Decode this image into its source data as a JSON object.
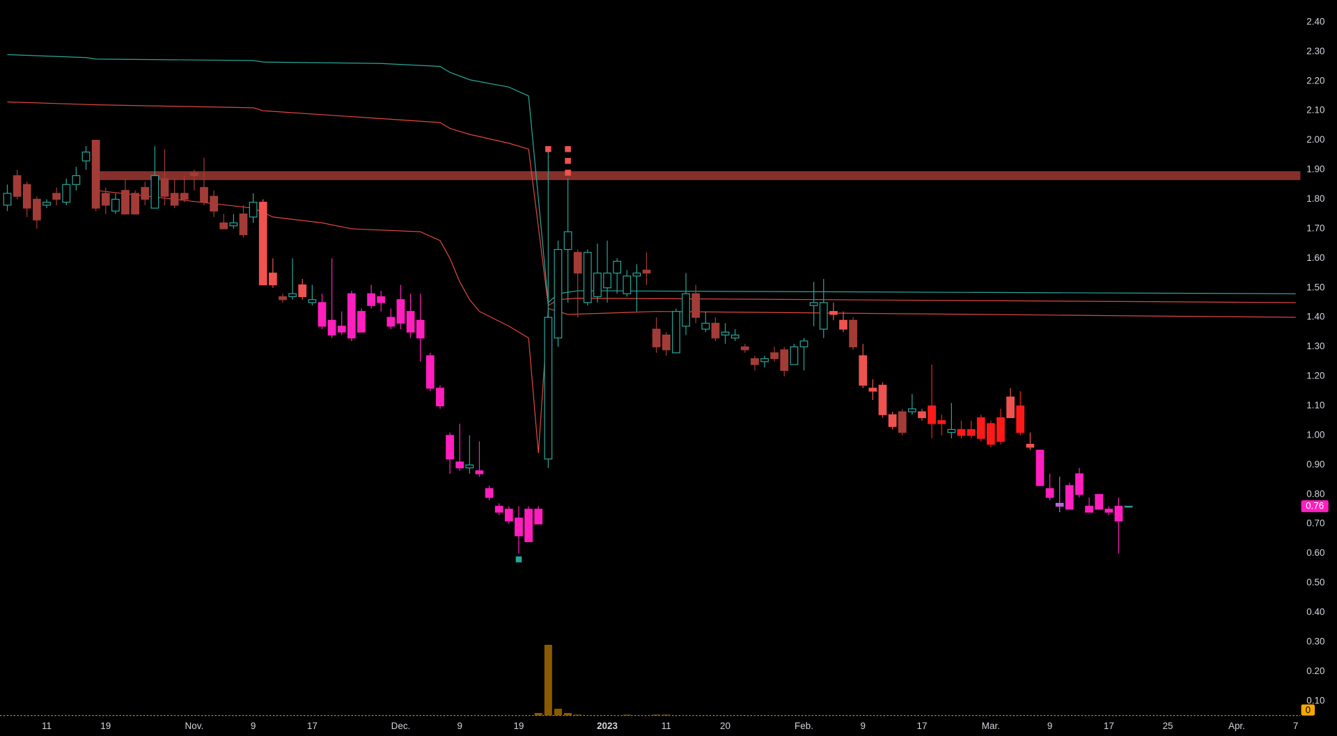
{
  "chart_data": {
    "type": "candlestick",
    "categories": [
      null,
      null,
      null,
      null,
      "11",
      null,
      null,
      null,
      null,
      null,
      "19",
      null,
      null,
      null,
      null,
      null,
      null,
      null,
      null,
      "Nov.",
      null,
      null,
      null,
      null,
      null,
      "9",
      null,
      null,
      null,
      null,
      null,
      "17",
      null,
      null,
      null,
      null,
      null,
      null,
      null,
      null,
      "Dec.",
      null,
      null,
      null,
      null,
      null,
      "9",
      null,
      null,
      null,
      null,
      null,
      "19",
      null,
      null,
      null,
      null,
      null,
      null,
      null,
      null,
      "2023",
      null,
      null,
      null,
      null,
      null,
      "11",
      null,
      null,
      null,
      null,
      null,
      "20",
      null,
      null,
      null,
      null,
      null,
      null,
      null,
      "Feb.",
      null,
      null,
      null,
      null,
      null,
      "9",
      null,
      null,
      null,
      null,
      null,
      "17",
      null,
      null,
      null,
      null,
      null,
      null,
      "Mar.",
      null,
      null,
      null,
      null,
      null,
      "9",
      null,
      null,
      null,
      null,
      null,
      "17",
      null,
      null,
      null,
      null,
      null,
      "25",
      null,
      null,
      null,
      null,
      null,
      null,
      "Apr.",
      null,
      null,
      null,
      null,
      null,
      "7"
    ],
    "open": [
      1.78,
      1.88,
      1.85,
      1.8,
      1.78,
      1.82,
      1.79,
      1.85,
      1.93,
      2.0,
      1.82,
      1.76,
      1.83,
      1.82,
      1.84,
      1.77,
      1.87,
      1.82,
      1.82,
      1.89,
      1.84,
      1.81,
      1.72,
      1.71,
      1.75,
      1.74,
      1.79,
      1.55,
      1.47,
      1.47,
      1.51,
      1.45,
      1.45,
      1.39,
      1.37,
      1.48,
      1.42,
      1.48,
      1.47,
      1.4,
      1.46,
      1.42,
      1.39,
      1.27,
      1.16,
      1.0,
      0.91,
      0.89,
      0.88,
      0.82,
      0.76,
      0.75,
      0.72,
      0.75,
      0.75,
      0.92,
      1.33,
      1.63,
      1.62,
      1.45,
      1.47,
      1.5,
      1.55,
      1.48,
      1.54,
      1.56,
      1.36,
      1.34,
      1.28,
      1.37,
      1.48,
      1.36,
      1.38,
      1.34,
      1.33,
      1.3,
      1.26,
      1.25,
      1.28,
      1.29,
      1.24,
      1.3,
      1.44,
      1.36,
      1.42,
      1.39,
      1.39,
      1.27,
      1.16,
      1.17,
      1.07,
      1.08,
      1.08,
      1.08,
      1.1,
      1.05,
      1.01,
      1.02,
      1.02,
      1.06,
      1.04,
      1.06,
      1.13,
      1.1,
      0.97,
      0.95,
      0.82,
      0.77,
      0.83,
      0.87,
      0.76,
      0.8,
      0.75,
      0.76,
      0.76,
      null,
      null,
      null,
      null,
      null,
      null,
      null,
      null,
      null,
      null,
      null,
      null,
      null,
      null,
      null,
      null,
      null
    ],
    "high": [
      1.85,
      1.9,
      1.86,
      1.81,
      1.8,
      1.84,
      1.87,
      1.91,
      1.98,
      2.0,
      1.84,
      1.82,
      1.87,
      1.83,
      1.86,
      1.98,
      1.97,
      1.87,
      1.88,
      1.9,
      1.94,
      1.83,
      1.75,
      1.75,
      1.78,
      1.82,
      1.8,
      1.6,
      1.48,
      1.6,
      1.53,
      1.51,
      1.48,
      1.6,
      1.42,
      1.49,
      1.43,
      1.51,
      1.49,
      1.43,
      1.51,
      1.48,
      1.48,
      1.28,
      1.17,
      1.01,
      1.04,
      1.0,
      0.98,
      0.83,
      0.77,
      0.76,
      0.76,
      0.76,
      0.76,
      1.96,
      1.66,
      1.87,
      1.63,
      1.63,
      1.65,
      1.66,
      1.6,
      1.56,
      1.58,
      1.62,
      1.4,
      1.35,
      1.43,
      1.55,
      1.51,
      1.42,
      1.4,
      1.38,
      1.36,
      1.31,
      1.27,
      1.27,
      1.3,
      1.3,
      1.31,
      1.33,
      1.52,
      1.53,
      1.45,
      1.42,
      1.4,
      1.31,
      1.19,
      1.18,
      1.08,
      1.09,
      1.14,
      1.09,
      1.24,
      1.07,
      1.11,
      1.05,
      1.05,
      1.07,
      1.05,
      1.09,
      1.16,
      1.15,
      1.01,
      0.95,
      0.87,
      0.86,
      0.84,
      0.89,
      0.79,
      0.8,
      0.76,
      0.79,
      0.76,
      null,
      null,
      null,
      null,
      null,
      null,
      null,
      null,
      null,
      null,
      null,
      null,
      null,
      null,
      null,
      null,
      null
    ],
    "low": [
      1.76,
      1.8,
      1.74,
      1.7,
      1.77,
      1.78,
      1.78,
      1.83,
      1.9,
      1.76,
      1.75,
      1.75,
      1.75,
      1.75,
      1.78,
      1.77,
      1.78,
      1.77,
      1.79,
      1.83,
      1.78,
      1.74,
      1.7,
      1.7,
      1.67,
      1.72,
      1.51,
      1.5,
      1.45,
      1.46,
      1.46,
      1.44,
      1.36,
      1.33,
      1.34,
      1.32,
      1.35,
      1.43,
      1.42,
      1.36,
      1.36,
      1.33,
      1.25,
      1.15,
      1.09,
      0.87,
      0.88,
      0.87,
      0.86,
      0.78,
      0.73,
      0.7,
      0.6,
      0.64,
      0.7,
      0.89,
      1.3,
      1.45,
      1.4,
      1.44,
      1.45,
      1.45,
      1.48,
      1.47,
      1.42,
      1.51,
      1.28,
      1.27,
      1.28,
      1.34,
      1.38,
      1.35,
      1.32,
      1.31,
      1.32,
      1.28,
      1.22,
      1.23,
      1.25,
      1.2,
      1.24,
      1.22,
      1.37,
      1.33,
      1.39,
      1.35,
      1.29,
      1.16,
      1.12,
      1.06,
      1.02,
      1.0,
      1.07,
      1.05,
      0.99,
      1.0,
      0.99,
      0.99,
      0.99,
      0.98,
      0.96,
      0.97,
      1.06,
      1.0,
      0.95,
      0.83,
      0.78,
      0.74,
      0.75,
      0.79,
      0.74,
      0.75,
      0.73,
      0.6,
      0.76,
      null,
      null,
      null,
      null,
      null,
      null,
      null,
      null,
      null,
      null,
      null,
      null,
      null,
      null,
      null,
      null,
      null
    ],
    "close": [
      1.82,
      1.81,
      1.77,
      1.73,
      1.79,
      1.8,
      1.85,
      1.88,
      1.96,
      1.77,
      1.78,
      1.8,
      1.75,
      1.75,
      1.8,
      1.88,
      1.81,
      1.78,
      1.8,
      1.88,
      1.79,
      1.76,
      1.7,
      1.72,
      1.68,
      1.79,
      1.51,
      1.51,
      1.46,
      1.48,
      1.47,
      1.46,
      1.37,
      1.34,
      1.35,
      1.33,
      1.35,
      1.44,
      1.45,
      1.37,
      1.38,
      1.35,
      1.33,
      1.16,
      1.1,
      0.92,
      0.89,
      0.9,
      0.87,
      0.79,
      0.74,
      0.71,
      0.66,
      0.64,
      0.7,
      1.4,
      1.63,
      1.69,
      1.55,
      1.62,
      1.55,
      1.55,
      1.59,
      1.54,
      1.55,
      1.55,
      1.3,
      1.29,
      1.42,
      1.48,
      1.4,
      1.38,
      1.33,
      1.35,
      1.34,
      1.29,
      1.24,
      1.26,
      1.26,
      1.22,
      1.3,
      1.32,
      1.45,
      1.45,
      1.41,
      1.36,
      1.3,
      1.17,
      1.15,
      1.07,
      1.03,
      1.01,
      1.09,
      1.06,
      1.04,
      1.04,
      1.02,
      1.0,
      1.0,
      0.99,
      0.97,
      0.98,
      1.06,
      1.01,
      0.96,
      0.83,
      0.79,
      0.76,
      0.75,
      0.8,
      0.74,
      0.75,
      0.74,
      0.71,
      0.76,
      null,
      null,
      null,
      null,
      null,
      null,
      null,
      null,
      null,
      null,
      null,
      null,
      null,
      null,
      null,
      null,
      null
    ],
    "colors": [
      "#26a69a",
      "#a33c37",
      "#a33c37",
      "#a33c37",
      "#26a69a",
      "#a33c37",
      "#26a69a",
      "#26a69a",
      "#26a69a",
      "#a33c37",
      "#a33c37",
      "#26a69a",
      "#a33c37",
      "#a33c37",
      "#a33c37",
      "#26a69a",
      "#a33c37",
      "#a33c37",
      "#a33c37",
      "#a33c37",
      "#a33c37",
      "#a33c37",
      "#a33c37",
      "#26a69a",
      "#a33c37",
      "#26a69a",
      "#ef5350",
      "#ef5350",
      "#a33c37",
      "#26a69a",
      "#ef5350",
      "#26a69a",
      "#ff1fbf",
      "#ff1fbf",
      "#ff1fbf",
      "#ff1fbf",
      "#ff1fbf",
      "#ff1fbf",
      "#ff1fbf",
      "#ff1fbf",
      "#ff1fbf",
      "#ff1fbf",
      "#ff1fbf",
      "#ff1fbf",
      "#ff1fbf",
      "#ff1fbf",
      "#ff1fbf",
      "#26a69a",
      "#ff1fbf",
      "#ff1fbf",
      "#ff1fbf",
      "#ff1fbf",
      "#ff1fbf",
      "#ff1fbf",
      "#ff1fbf",
      "#26a69a",
      "#26a69a",
      "#26a69a",
      "#a33c37",
      "#26a69a",
      "#26a69a",
      "#26a69a",
      "#26a69a",
      "#26a69a",
      "#26a69a",
      "#a33c37",
      "#a33c37",
      "#a33c37",
      "#26a69a",
      "#26a69a",
      "#a33c37",
      "#26a69a",
      "#a33c37",
      "#26a69a",
      "#26a69a",
      "#a33c37",
      "#a33c37",
      "#26a69a",
      "#a33c37",
      "#a33c37",
      "#26a69a",
      "#26a69a",
      "#26a69a",
      "#26a69a",
      "#ef5350",
      "#ef5350",
      "#a33c37",
      "#ef5350",
      "#ef5350",
      "#ef5350",
      "#ef5350",
      "#a33c37",
      "#26a69a",
      "#ef5350",
      "#ff1a1a",
      "#ff1a1a",
      "#26a69a",
      "#ff1a1a",
      "#ff1a1a",
      "#ff1a1a",
      "#ff1a1a",
      "#ff1a1a",
      "#ef5350",
      "#ff1a1a",
      "#ef5350",
      "#ff1fbf",
      "#ff1fbf",
      "#c060e0",
      "#ff1fbf",
      "#ff1fbf",
      "#ff1fbf",
      "#ff1fbf",
      "#ff1fbf",
      "#ff1fbf",
      "#26a69a",
      null,
      null,
      null,
      null,
      null,
      null,
      null,
      null,
      null,
      null,
      null,
      null,
      null,
      null,
      null,
      null,
      null
    ],
    "hollow_up": true,
    "volume": [
      0,
      0,
      0,
      0,
      0,
      0,
      0,
      0,
      0,
      0,
      0,
      0,
      0,
      0,
      0,
      0,
      0,
      0,
      0,
      0,
      0,
      0,
      0,
      0,
      0,
      0,
      0,
      0,
      0,
      0,
      0,
      0,
      0,
      0,
      0,
      0,
      0,
      0,
      0,
      0,
      0,
      0,
      0,
      0,
      0,
      0,
      0,
      0,
      0,
      0,
      0,
      0,
      0,
      0,
      3,
      83,
      8,
      3,
      1,
      0,
      0,
      0,
      0,
      1,
      0,
      0,
      1,
      1,
      0,
      0,
      0,
      0,
      0,
      0,
      0,
      0,
      0,
      0,
      0,
      0,
      0,
      0,
      0,
      0,
      0,
      0,
      0,
      0,
      0,
      0,
      0,
      0,
      0,
      0,
      0,
      0,
      0,
      0,
      0,
      0,
      0,
      0,
      0,
      0,
      0,
      0,
      0,
      0,
      0,
      0,
      0,
      0,
      0,
      0,
      0,
      null,
      null,
      null,
      null,
      null,
      null,
      null,
      null,
      null,
      null,
      null,
      null,
      null,
      null,
      null,
      null,
      null
    ],
    "volume_lim": [
      0,
      100
    ],
    "volume_color": "#8a5a00",
    "last_volume": 0,
    "last_price": 0.76,
    "last_price_color": "#ff1fbf",
    "lines": [
      {
        "color": "#2aa89a",
        "x": [
          0,
          8,
          9,
          25,
          26,
          38,
          44,
          45,
          47,
          51,
          53,
          55,
          56,
          58,
          131
        ],
        "values": [
          2.29,
          2.28,
          2.275,
          2.27,
          2.265,
          2.26,
          2.25,
          2.23,
          2.205,
          2.18,
          2.15,
          1.45,
          1.48,
          1.49,
          1.48
        ]
      },
      {
        "color": "#e0483f",
        "x": [
          0,
          9,
          25,
          26,
          44,
          45,
          47,
          51,
          53,
          55,
          56,
          58,
          82,
          131
        ],
        "values": [
          2.13,
          2.12,
          2.11,
          2.1,
          2.06,
          2.04,
          2.02,
          1.99,
          1.97,
          1.44,
          1.46,
          1.465,
          1.46,
          1.45
        ]
      },
      {
        "color": "#e0483f",
        "x": [
          9,
          17,
          25,
          27,
          32,
          35,
          42,
          44,
          45,
          46,
          47,
          48,
          51,
          53,
          54,
          55,
          57,
          66,
          131
        ],
        "values": [
          1.83,
          1.8,
          1.77,
          1.74,
          1.72,
          1.7,
          1.69,
          1.66,
          1.6,
          1.52,
          1.46,
          1.42,
          1.37,
          1.33,
          0.94,
          1.43,
          1.41,
          1.42,
          1.4
        ]
      }
    ],
    "zone": {
      "low": 1.865,
      "high": 1.895,
      "from": 9,
      "to": 131,
      "color": "#b2403a"
    },
    "markers": [
      {
        "x": 55,
        "value": 1.97,
        "color": "#ef5350"
      },
      {
        "x": 57,
        "value": 1.97,
        "color": "#ef5350"
      },
      {
        "x": 57,
        "value": 1.93,
        "color": "#ef5350"
      },
      {
        "x": 57,
        "value": 1.89,
        "color": "#ef5350"
      },
      {
        "x": 52,
        "value": 0.58,
        "color": "#26a69a"
      }
    ],
    "ylim": [
      0.1,
      2.4
    ],
    "yticks": [
      {
        "value": 0.1,
        "label": "0.10"
      },
      {
        "value": 0.2,
        "label": "0.20"
      },
      {
        "value": 0.3,
        "label": "0.30"
      },
      {
        "value": 0.4,
        "label": "0.40"
      },
      {
        "value": 0.5,
        "label": "0.50"
      },
      {
        "value": 0.6,
        "label": "0.60"
      },
      {
        "value": 0.7,
        "label": "0.70"
      },
      {
        "value": 0.8,
        "label": "0.80"
      },
      {
        "value": 0.9,
        "label": "0.90"
      },
      {
        "value": 1.0,
        "label": "1.00"
      },
      {
        "value": 1.1,
        "label": "1.10"
      },
      {
        "value": 1.2,
        "label": "1.20"
      },
      {
        "value": 1.3,
        "label": "1.30"
      },
      {
        "value": 1.4,
        "label": "1.40"
      },
      {
        "value": 1.5,
        "label": "1.50"
      },
      {
        "value": 1.6,
        "label": "1.60"
      },
      {
        "value": 1.7,
        "label": "1.70"
      },
      {
        "value": 1.8,
        "label": "1.80"
      },
      {
        "value": 1.9,
        "label": "1.90"
      },
      {
        "value": 2.0,
        "label": "2.00"
      },
      {
        "value": 2.1,
        "label": "2.10"
      },
      {
        "value": 2.2,
        "label": "2.20"
      },
      {
        "value": 2.3,
        "label": "2.30"
      },
      {
        "value": 2.4,
        "label": "2.40"
      }
    ]
  }
}
